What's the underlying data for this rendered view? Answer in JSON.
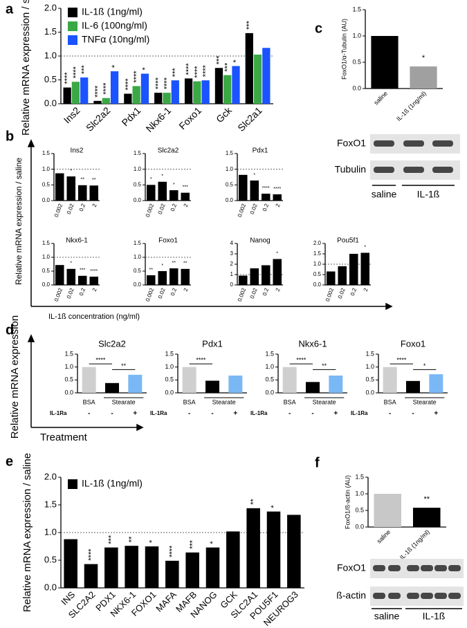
{
  "chart_data": [
    {
      "panel": "a",
      "type": "grouped_bar",
      "ylabel": "Relative mRNA expression / saline",
      "categories": [
        "Ins2",
        "Slc2a2",
        "Pdx1",
        "Nkx6-1",
        "Foxo1",
        "Gck",
        "Slc2a1"
      ],
      "series": [
        {
          "name": "IL-1ß (1ng/ml)",
          "color": "#000000",
          "values": [
            0.34,
            0.06,
            0.21,
            0.23,
            0.53,
            0.75,
            1.48
          ],
          "labels": [
            "****",
            "****",
            "****",
            "****",
            "****",
            "***",
            "***"
          ]
        },
        {
          "name": "IL-6 (100ng/ml)",
          "color": "#3aa845",
          "values": [
            0.46,
            0.12,
            0.37,
            0.23,
            0.47,
            0.6,
            1.03
          ],
          "labels": [
            "****",
            "****",
            "****",
            "****",
            "****",
            "***",
            null
          ]
        },
        {
          "name": "TNFα (10ng/ml)",
          "color": "#1a53ff",
          "values": [
            0.55,
            0.68,
            0.63,
            0.49,
            0.49,
            0.79,
            1.17
          ],
          "labels": [
            "***",
            "*",
            "*",
            "***",
            "****",
            "*",
            null
          ]
        }
      ],
      "ylim": [
        0,
        2
      ],
      "yticks": [
        {
          "value": 0,
          "label": "0.0"
        },
        0.5,
        {
          "value": 1,
          "label": "1.0"
        },
        1.5,
        {
          "value": 2,
          "label": "2.0"
        }
      ],
      "refline": 1
    },
    {
      "panel": "b",
      "type": "bar_multiples",
      "ylabel": "Relative mRNA expression / saline",
      "xlabel": "IL-1ß concentration (ng/ml)",
      "color": "#000000",
      "refline": 1,
      "charts": [
        {
          "title": "Ins2",
          "categories": [
            "0.002",
            "0.02",
            "0.2",
            "2"
          ],
          "values": [
            0.87,
            0.77,
            0.49,
            0.48
          ],
          "labels": [
            null,
            "*",
            "**",
            "**"
          ],
          "ylim": [
            0,
            1.5
          ],
          "yticks": [
            {
              "value": 0,
              "label": "0.0"
            },
            0.5,
            {
              "value": 1,
              "label": "1.0"
            },
            1.5
          ]
        },
        {
          "title": "Slc2a2",
          "categories": [
            "0.002",
            "0.02",
            "0.2",
            "2"
          ],
          "values": [
            0.5,
            0.6,
            0.33,
            0.25
          ],
          "labels": [
            "*",
            "*",
            "*",
            "***"
          ],
          "ylim": [
            0,
            1.5
          ],
          "yticks": [
            {
              "value": 0,
              "label": "0.0"
            },
            0.5,
            {
              "value": 1,
              "label": "1.0"
            },
            1.5
          ]
        },
        {
          "title": "Pdx1",
          "categories": [
            "0.002",
            "0.02",
            "0.2",
            "2"
          ],
          "values": [
            0.82,
            0.64,
            0.22,
            0.2
          ],
          "labels": [
            null,
            "*",
            "****",
            "****"
          ],
          "ylim": [
            0,
            1.5
          ],
          "yticks": [
            {
              "value": 0,
              "label": "0.0"
            },
            0.5,
            {
              "value": 1,
              "label": "1.0"
            },
            1.5
          ]
        },
        {
          "title": "Nkx6-1",
          "categories": [
            "0.002",
            "0.02",
            "0.2",
            "2"
          ],
          "values": [
            0.72,
            0.58,
            0.33,
            0.3
          ],
          "labels": [
            null,
            "*",
            "***",
            "****"
          ],
          "ylim": [
            0,
            1.5
          ],
          "yticks": [
            {
              "value": 0,
              "label": "0.0"
            },
            0.5,
            {
              "value": 1,
              "label": "1.0"
            },
            1.5
          ]
        },
        {
          "title": "Foxo1",
          "categories": [
            "0.002",
            "0.02",
            "0.2",
            "2"
          ],
          "values": [
            0.35,
            0.5,
            0.6,
            0.58
          ],
          "labels": [
            "**",
            "*",
            "**",
            "**"
          ],
          "ylim": [
            0,
            1.5
          ],
          "yticks": [
            {
              "value": 0,
              "label": "0.0"
            },
            0.5,
            {
              "value": 1,
              "label": "1.0"
            },
            1.5
          ]
        },
        {
          "title": "Nanog",
          "categories": [
            "0.002",
            "0.02",
            "0.2",
            "2"
          ],
          "values": [
            0.9,
            1.6,
            1.9,
            2.5
          ],
          "labels": [
            null,
            null,
            null,
            "*"
          ],
          "ylim": [
            0,
            4
          ],
          "yticks": [
            0,
            1,
            2,
            3,
            4
          ]
        },
        {
          "title": "Pou5f1",
          "categories": [
            "0.002",
            "0.02",
            "0.2",
            "2"
          ],
          "values": [
            0.65,
            0.9,
            1.5,
            1.55
          ],
          "labels": [
            null,
            null,
            null,
            "*"
          ],
          "ylim": [
            0,
            2
          ],
          "yticks": [
            {
              "value": 0,
              "label": "0.0"
            },
            0.5,
            {
              "value": 1,
              "label": "1.0"
            },
            1.5,
            {
              "value": 2,
              "label": "2.0"
            }
          ]
        }
      ]
    },
    {
      "panel": "c",
      "type": "bar",
      "ylabel": "FoxO1/α-Tubulin (AU)",
      "categories": [
        "saline",
        "IL-1ß (1ng/ml)"
      ],
      "values": [
        1.0,
        0.42
      ],
      "colors": [
        "#000000",
        "#a0a0a0"
      ],
      "labels": [
        null,
        "*"
      ],
      "ylim": [
        0,
        1.5
      ],
      "yticks": [
        {
          "value": 0,
          "label": "0.0"
        },
        0.5,
        {
          "value": 1,
          "label": "1.0"
        },
        1.5
      ],
      "blot": {
        "rows": [
          "FoxO1",
          "Tubulin"
        ],
        "groups": [
          "saline",
          "IL-1ß"
        ]
      }
    },
    {
      "panel": "d",
      "type": "treatment_multiples",
      "ylabel": "Relative mRNA expression",
      "xlabel": "Treatment",
      "group_labels": [
        "BSA",
        "Stearate"
      ],
      "row_label": "IL-1Ra",
      "row_values": [
        "-",
        "-",
        "+"
      ],
      "colors": [
        "#cfcfcf",
        "#000000",
        "#7ab8f5"
      ],
      "ylim": [
        0,
        1.5
      ],
      "yticks": [
        {
          "value": 0,
          "label": "0.0"
        },
        0.5,
        {
          "value": 1,
          "label": "1.0"
        },
        1.5
      ],
      "charts": [
        {
          "title": "Slc2a2",
          "values": [
            1.0,
            0.38,
            0.7
          ],
          "sig_vs_bsa": "****",
          "sig_vs_stearate": "**"
        },
        {
          "title": "Pdx1",
          "values": [
            1.0,
            0.47,
            0.67
          ],
          "sig_vs_bsa": "****",
          "sig_vs_stearate": null
        },
        {
          "title": "Nkx6-1",
          "values": [
            1.0,
            0.42,
            0.67
          ],
          "sig_vs_bsa": "****",
          "sig_vs_stearate": "**"
        },
        {
          "title": "Foxo1",
          "values": [
            1.0,
            0.46,
            0.72
          ],
          "sig_vs_bsa": "****",
          "sig_vs_stearate": "*"
        }
      ]
    },
    {
      "panel": "e",
      "type": "grouped_bar",
      "ylabel": "Relative mRNA expression / saline",
      "categories": [
        "INS",
        "SLC2A2",
        "PDX1",
        "NKX6-1",
        "FOXO1",
        "MAFA",
        "MAFB",
        "NANOG",
        "GCK",
        "SLC2A1",
        "POU5F1",
        "NEUROG3"
      ],
      "series": [
        {
          "name": "IL-1ß (1ng/ml)",
          "color": "#000000",
          "values": [
            0.88,
            0.43,
            0.73,
            0.76,
            0.75,
            0.49,
            0.64,
            0.73,
            1.02,
            1.44,
            1.38,
            1.32
          ],
          "labels": [
            null,
            "****",
            "***",
            "**",
            "*",
            "****",
            "***",
            "*",
            null,
            "**",
            "*",
            null
          ]
        }
      ],
      "ylim": [
        0,
        2
      ],
      "yticks": [
        {
          "value": 0,
          "label": "0.0"
        },
        0.5,
        {
          "value": 1,
          "label": "1.0"
        },
        1.5,
        {
          "value": 2,
          "label": "2.0"
        }
      ],
      "refline": 1
    },
    {
      "panel": "f",
      "type": "bar",
      "ylabel": "FoxO1/ß-actin (AU)",
      "categories": [
        "saline",
        "IL-1ß (1ng/ml)"
      ],
      "values": [
        1.0,
        0.58
      ],
      "colors": [
        "#c8c8c8",
        "#000000"
      ],
      "labels": [
        null,
        "**"
      ],
      "ylim": [
        0,
        1.5
      ],
      "yticks": [
        {
          "value": 0,
          "label": "0.0"
        },
        0.5,
        {
          "value": 1,
          "label": "1.0"
        },
        1.5
      ],
      "blot": {
        "rows": [
          "FoxO1",
          "ß-actin"
        ],
        "groups": [
          "saline",
          "IL-1ß"
        ]
      }
    }
  ]
}
